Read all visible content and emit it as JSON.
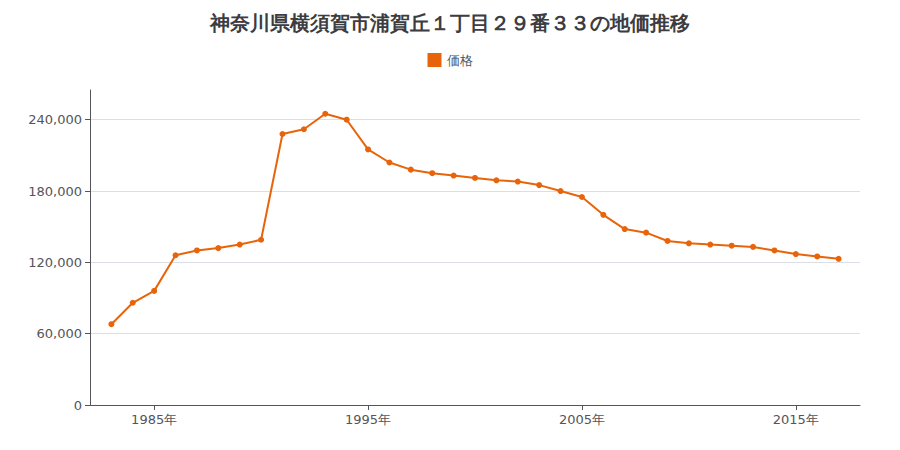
{
  "chart_data": {
    "type": "line",
    "title": "神奈川県横須賀市浦賀丘１丁目２９番３３の地価推移",
    "x": [
      1983,
      1984,
      1985,
      1986,
      1987,
      1988,
      1989,
      1990,
      1991,
      1992,
      1993,
      1994,
      1995,
      1996,
      1997,
      1998,
      1999,
      2000,
      2001,
      2002,
      2003,
      2004,
      2005,
      2006,
      2007,
      2008,
      2009,
      2010,
      2011,
      2012,
      2013,
      2014,
      2015,
      2016,
      2017
    ],
    "series": [
      {
        "name": "価格",
        "color": "#e8640a",
        "marker": "circle",
        "values": [
          68000,
          86000,
          96000,
          126000,
          130000,
          132000,
          135000,
          139000,
          228000,
          232000,
          245000,
          240000,
          215000,
          204000,
          198000,
          195000,
          193000,
          191000,
          189000,
          188000,
          185000,
          180000,
          175000,
          160000,
          148000,
          145000,
          138000,
          136000,
          135000,
          134000,
          133000,
          130000,
          127000,
          125000,
          123000
        ]
      }
    ],
    "xlim": [
      1982,
      2018
    ],
    "xticks": [
      {
        "value": 1985,
        "label": "1985年"
      },
      {
        "value": 1995,
        "label": "1995年"
      },
      {
        "value": 2005,
        "label": "2005年"
      },
      {
        "value": 2015,
        "label": "2015年"
      }
    ],
    "ylim": [
      0,
      265000
    ],
    "yticks": [
      0,
      {
        "value": 60000,
        "label": "60,000"
      },
      {
        "value": 120000,
        "label": "120,000"
      },
      {
        "value": 180000,
        "label": "180,000"
      },
      {
        "value": 240000,
        "label": "240,000"
      }
    ],
    "grid": "y",
    "legend": "top"
  }
}
